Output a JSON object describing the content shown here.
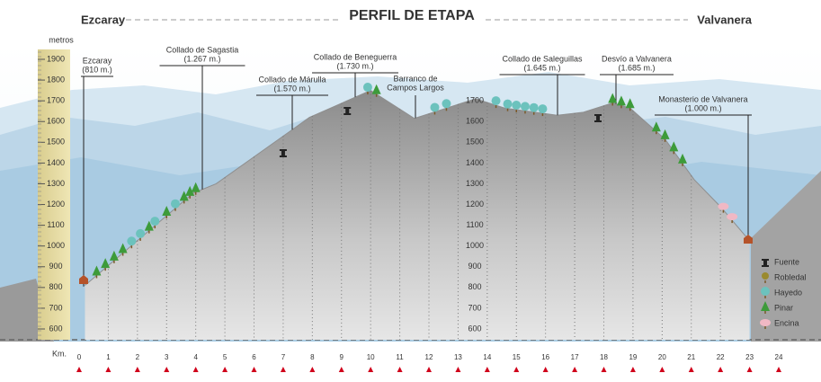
{
  "chart_data": {
    "type": "area",
    "title": "PERFIL DE ETAPA",
    "start": "Ezcaray",
    "end": "Valvanera",
    "y_label": "metros",
    "x_label": "Km.",
    "x": [
      0.2,
      3.9,
      4.7,
      7.5,
      7.9,
      10,
      11.5,
      13.6,
      14.6,
      16.4,
      17.3,
      18.3,
      18.9,
      20.1,
      21.1,
      22,
      23
    ],
    "values": [
      810,
      1254,
      1300,
      1580,
      1620,
      1750,
      1615,
      1710,
      1665,
      1630,
      1645,
      1690,
      1665,
      1515,
      1320,
      1190,
      1025
    ],
    "color": "#8f8f8f",
    "xlim": [
      0,
      24
    ],
    "xticks": [
      0,
      1,
      2,
      3,
      4,
      5,
      6,
      7,
      8,
      9,
      10,
      11,
      12,
      13,
      14,
      15,
      16,
      17,
      18,
      19,
      20,
      21,
      22,
      23,
      24
    ],
    "ylim": [
      600,
      1900
    ],
    "yticks": [
      600,
      700,
      800,
      900,
      1000,
      1100,
      1200,
      1300,
      1400,
      1500,
      1600,
      1700,
      1800,
      1900
    ],
    "inner_yticks": [
      600,
      700,
      800,
      900,
      1000,
      1100,
      1200,
      1300,
      1400,
      1500,
      1600,
      1700
    ],
    "annotations": [
      {
        "name": "Ezcaray",
        "elevation": "(810 m.)"
      },
      {
        "name": "Collado de Sagastia",
        "elevation": "(1.267 m.)"
      },
      {
        "name": "Collado de Márulla",
        "elevation": "(1.570 m.)"
      },
      {
        "name": "Collado de Beneguerra",
        "elevation": "(1.730 m.)"
      },
      {
        "name": "Barranco de",
        "elevation": "Campos Largos"
      },
      {
        "name": "Collado de Saleguillas",
        "elevation": "(1.645 m.)"
      },
      {
        "name": "Desvío a Valvanera",
        "elevation": "(1.685 m.)"
      },
      {
        "name": "Monasterio de Valvanera",
        "elevation": "(1.000 m.)"
      }
    ],
    "legend": [
      "Fuente",
      "Robledal",
      "Hayedo",
      "Pinar",
      "Encina"
    ]
  }
}
